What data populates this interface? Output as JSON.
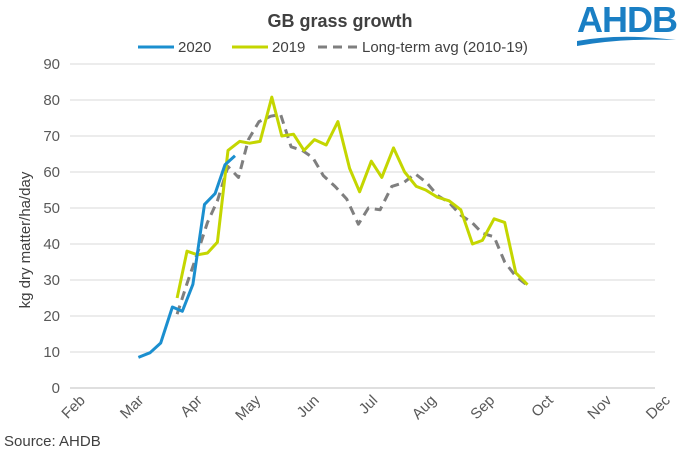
{
  "colors": {
    "series_2020": "#1b8fcf",
    "series_2019": "#c4d600",
    "series_avg": "#7f7f7f",
    "logo": "#1a7fc4",
    "grid": "#d9d9d9"
  },
  "logo": {
    "text": "AHDB"
  },
  "source": "Source: AHDB",
  "chart_data": {
    "type": "line",
    "title": "GB grass growth",
    "ylabel": "kg dry matter/ha/day",
    "xlabel": "",
    "ylim": [
      0,
      90
    ],
    "yticks": [
      0,
      10,
      20,
      30,
      40,
      50,
      60,
      70,
      80,
      90
    ],
    "xlim": [
      0,
      10
    ],
    "month_labels": [
      "Feb",
      "Mar",
      "Apr",
      "May",
      "Jun",
      "Jul",
      "Aug",
      "Sep",
      "Oct",
      "Nov",
      "Dec"
    ],
    "grid": "horizontal",
    "legend_position": "top",
    "series": [
      {
        "name": "2020",
        "style": "solid",
        "points": [
          [
            1.17,
            8.5
          ],
          [
            1.37,
            9.8
          ],
          [
            1.55,
            12.5
          ],
          [
            1.75,
            22.5
          ],
          [
            1.92,
            21.3
          ],
          [
            2.1,
            28.8
          ],
          [
            2.3,
            51
          ],
          [
            2.48,
            54
          ],
          [
            2.65,
            62
          ],
          [
            2.82,
            64.5
          ]
        ]
      },
      {
        "name": "2019",
        "style": "solid",
        "points": [
          [
            1.83,
            25
          ],
          [
            2.0,
            38
          ],
          [
            2.18,
            37
          ],
          [
            2.35,
            37.5
          ],
          [
            2.52,
            40.5
          ],
          [
            2.7,
            66
          ],
          [
            2.9,
            68.5
          ],
          [
            3.07,
            68
          ],
          [
            3.25,
            68.5
          ],
          [
            3.45,
            80.8
          ],
          [
            3.62,
            70
          ],
          [
            3.82,
            70.5
          ],
          [
            4.0,
            66
          ],
          [
            4.18,
            69
          ],
          [
            4.38,
            67.5
          ],
          [
            4.58,
            74
          ],
          [
            4.78,
            61
          ],
          [
            4.95,
            54.5
          ],
          [
            5.15,
            63
          ],
          [
            5.33,
            58.5
          ],
          [
            5.53,
            66.7
          ],
          [
            5.72,
            60
          ],
          [
            5.92,
            56
          ],
          [
            6.08,
            55
          ],
          [
            6.28,
            53
          ],
          [
            6.48,
            52
          ],
          [
            6.68,
            49.5
          ],
          [
            6.88,
            40
          ],
          [
            7.05,
            41
          ],
          [
            7.25,
            47
          ],
          [
            7.43,
            46
          ],
          [
            7.62,
            32
          ],
          [
            7.82,
            28.7
          ]
        ]
      },
      {
        "name": "Long-term avg (2010-19)",
        "style": "dashed",
        "points": [
          [
            1.83,
            20.5
          ],
          [
            2.0,
            29
          ],
          [
            2.18,
            37.5
          ],
          [
            2.35,
            46
          ],
          [
            2.52,
            52
          ],
          [
            2.7,
            61.5
          ],
          [
            2.88,
            58.5
          ],
          [
            3.05,
            69
          ],
          [
            3.23,
            74
          ],
          [
            3.43,
            75.5
          ],
          [
            3.6,
            76
          ],
          [
            3.78,
            67
          ],
          [
            3.97,
            66
          ],
          [
            4.15,
            64
          ],
          [
            4.33,
            59
          ],
          [
            4.53,
            56
          ],
          [
            4.73,
            52.5
          ],
          [
            4.93,
            45.5
          ],
          [
            5.1,
            50
          ],
          [
            5.3,
            49.5
          ],
          [
            5.5,
            56
          ],
          [
            5.7,
            57
          ],
          [
            5.9,
            59.5
          ],
          [
            6.1,
            57
          ],
          [
            6.28,
            53.5
          ],
          [
            6.48,
            51.5
          ],
          [
            6.68,
            48
          ],
          [
            6.87,
            46
          ],
          [
            7.05,
            43
          ],
          [
            7.25,
            42
          ],
          [
            7.43,
            35
          ],
          [
            7.62,
            31
          ],
          [
            7.82,
            28.5
          ]
        ]
      }
    ]
  }
}
